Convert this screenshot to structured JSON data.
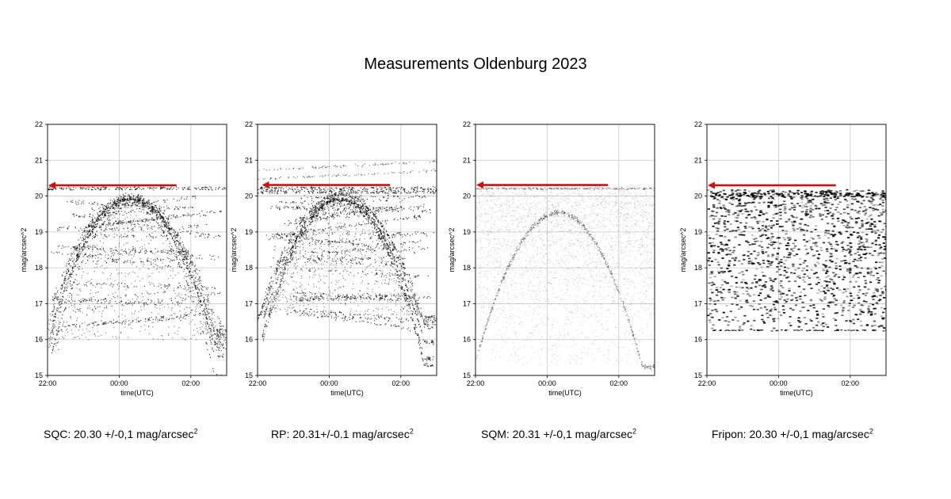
{
  "title": "Measurements Oldenburg 2023",
  "chart_data": [
    {
      "type": "scatter",
      "title": "",
      "xlabel": "time(UTC)",
      "ylabel": "mag/arcsec^2",
      "xticks": [
        "22:00",
        "00:00",
        "02:00"
      ],
      "xtick_hours": [
        0,
        2,
        4
      ],
      "xlim_hours": [
        0,
        5
      ],
      "yticks": [
        15,
        16,
        17,
        18,
        19,
        20,
        21,
        22
      ],
      "ylim": [
        15,
        22
      ],
      "grid": true,
      "style": "sqc",
      "reference": {
        "value": 20.3,
        "from_hour": 3.6,
        "to_hour": 0,
        "color": "#cc1111"
      },
      "caption": {
        "prefix": "SQC: 20.30 +/-0,1 mag/arcsec",
        "sup": "2"
      }
    },
    {
      "type": "scatter",
      "title": "",
      "xlabel": "time(UTC)",
      "ylabel": "mag/arcsec^2",
      "xticks": [
        "22:00",
        "00:00",
        "02:00"
      ],
      "xtick_hours": [
        0,
        2,
        4
      ],
      "xlim_hours": [
        0,
        5
      ],
      "yticks": [
        15,
        16,
        17,
        18,
        19,
        20,
        21,
        22
      ],
      "ylim": [
        15,
        22
      ],
      "grid": true,
      "style": "rp",
      "reference": {
        "value": 20.31,
        "from_hour": 3.7,
        "to_hour": 0.1,
        "color": "#cc1111"
      },
      "caption": {
        "prefix": "RP: 20.31+/-0.1 mag/arcsec",
        "sup": "2"
      }
    },
    {
      "type": "scatter",
      "title": "",
      "xlabel": "time(UTC)",
      "ylabel": "mag/arcsec^2",
      "xticks": [
        "22:00",
        "00:00",
        "02:00"
      ],
      "xtick_hours": [
        0,
        2,
        4
      ],
      "xlim_hours": [
        0,
        5
      ],
      "yticks": [
        15,
        16,
        17,
        18,
        19,
        20,
        21,
        22
      ],
      "ylim": [
        15,
        22
      ],
      "grid": true,
      "style": "sqm",
      "reference": {
        "value": 20.31,
        "from_hour": 3.7,
        "to_hour": 0,
        "color": "#cc1111"
      },
      "caption": {
        "prefix": "SQM: 20.31 +/-0,1 mag/arcsec",
        "sup": "2"
      }
    },
    {
      "type": "scatter",
      "title": "",
      "xlabel": "time(UTC)",
      "ylabel": "mag/arcsec^2",
      "xticks": [
        "22:00",
        "00:00",
        "02:00"
      ],
      "xtick_hours": [
        0,
        2,
        4
      ],
      "xlim_hours": [
        0,
        5
      ],
      "yticks": [
        15,
        16,
        17,
        18,
        19,
        20,
        21,
        22
      ],
      "ylim": [
        15,
        22
      ],
      "grid": true,
      "style": "fripon",
      "reference": {
        "value": 20.3,
        "from_hour": 3.6,
        "to_hour": 0,
        "color": "#cc1111"
      },
      "caption": {
        "prefix": "Fripon: 20.30 +/-0,1 mag/arcsec",
        "sup": "2"
      }
    }
  ]
}
